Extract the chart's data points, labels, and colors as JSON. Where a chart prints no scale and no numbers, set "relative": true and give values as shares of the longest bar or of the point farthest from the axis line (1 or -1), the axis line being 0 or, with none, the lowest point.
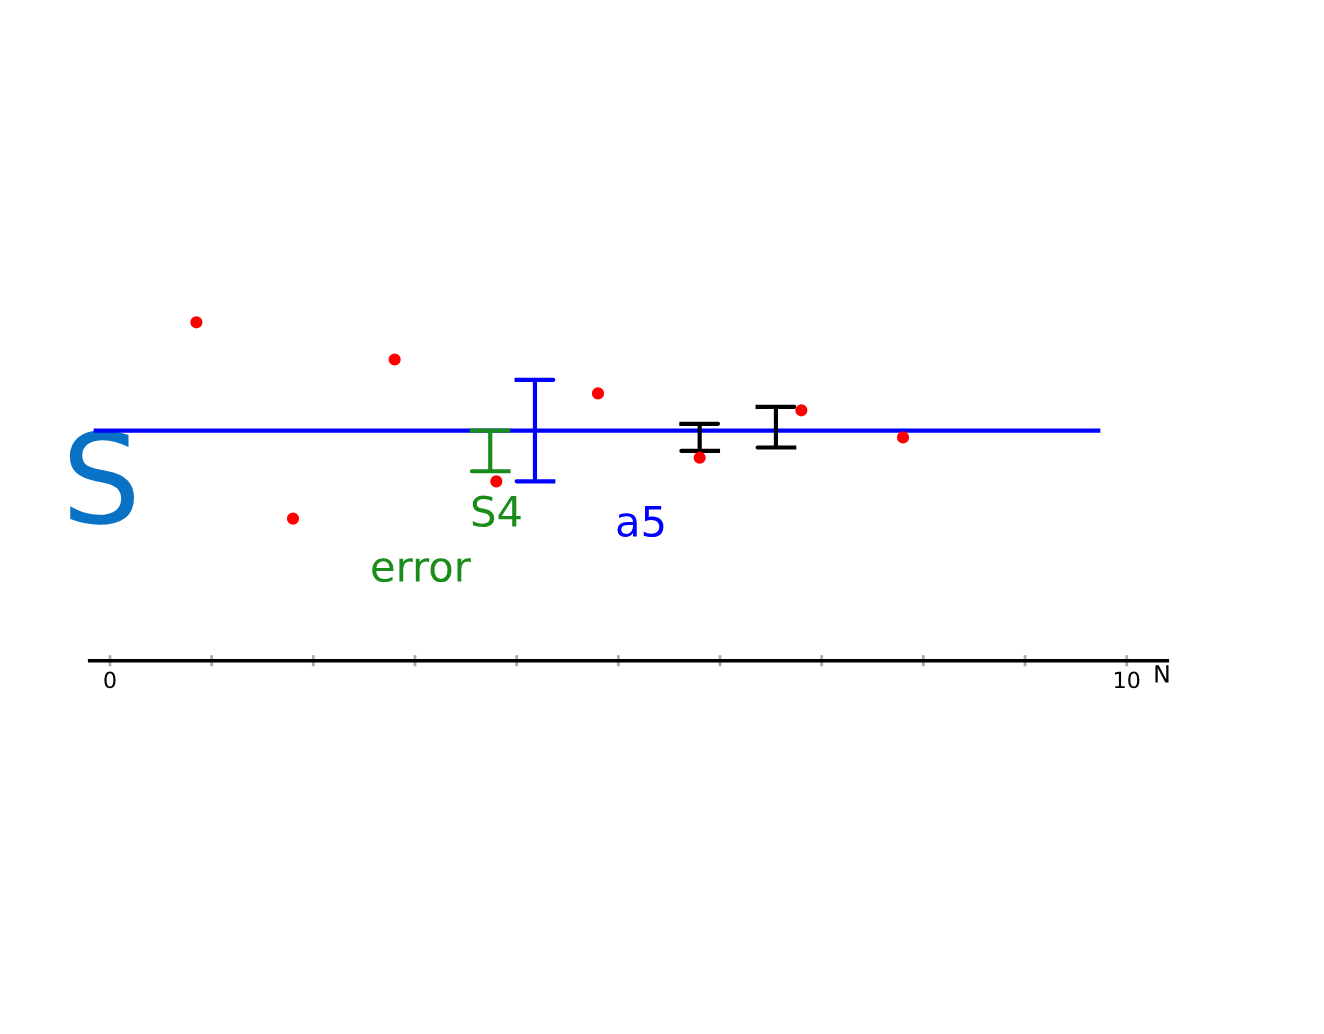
{
  "chart_data": {
    "type": "scatter",
    "relative": true,
    "xlabel": "N",
    "ylabel": "S",
    "xlim": [
      -0.2,
      10.4
    ],
    "xticks": [
      {
        "value": 0,
        "label": "0"
      },
      {
        "value": 1,
        "label": null
      },
      {
        "value": 2,
        "label": null
      },
      {
        "value": 3,
        "label": null
      },
      {
        "value": 4,
        "label": null
      },
      {
        "value": 5,
        "label": null
      },
      {
        "value": 6,
        "label": null
      },
      {
        "value": 7,
        "label": null
      },
      {
        "value": 8,
        "label": null
      },
      {
        "value": 9,
        "label": null
      },
      {
        "value": 10,
        "label": "10"
      }
    ],
    "grid": false,
    "legend": false,
    "marker": "circle",
    "series": [
      {
        "color": "#ff0000",
        "x": [
          0.85,
          1.8,
          2.8,
          3.8,
          4.8,
          5.8,
          6.8,
          7.8
        ],
        "values": [
          1,
          0.42,
          0.89,
          0.53,
          0.79,
          0.6,
          0.74,
          0.66
        ]
      },
      {
        "type": "line",
        "marker": "none",
        "color": "#0000ff",
        "x": [
          -0.14,
          9.72
        ],
        "values": [
          0.68,
          0.68
        ]
      },
      {
        "type": "line",
        "marker": "none",
        "color": "#1a8c1a",
        "x": [
          3.56,
          3.92,
          3.74,
          3.74,
          3.56,
          3.92
        ],
        "values": [
          0.68,
          0.68,
          0.68,
          0.56,
          0.56,
          0.56
        ]
      },
      {
        "type": "line",
        "marker": "none",
        "color": "#0000ff",
        "x": [
          4.0,
          4.36,
          4.18,
          4.18,
          4.0,
          4.36
        ],
        "values": [
          0.83,
          0.83,
          0.83,
          0.53,
          0.53,
          0.53
        ]
      },
      {
        "type": "line",
        "marker": "none",
        "color": "#000000",
        "x": [
          5.62,
          5.98,
          5.8,
          5.8,
          5.62,
          5.98
        ],
        "values": [
          0.7,
          0.7,
          0.7,
          0.62,
          0.62,
          0.62
        ]
      },
      {
        "type": "line",
        "marker": "none",
        "color": "#000000",
        "x": [
          6.37,
          6.73,
          6.55,
          6.55,
          6.37,
          6.73
        ],
        "values": [
          0.75,
          0.75,
          0.75,
          0.63,
          0.63,
          0.63
        ]
      }
    ],
    "annotations": [
      "S4",
      "error",
      "a5"
    ]
  }
}
